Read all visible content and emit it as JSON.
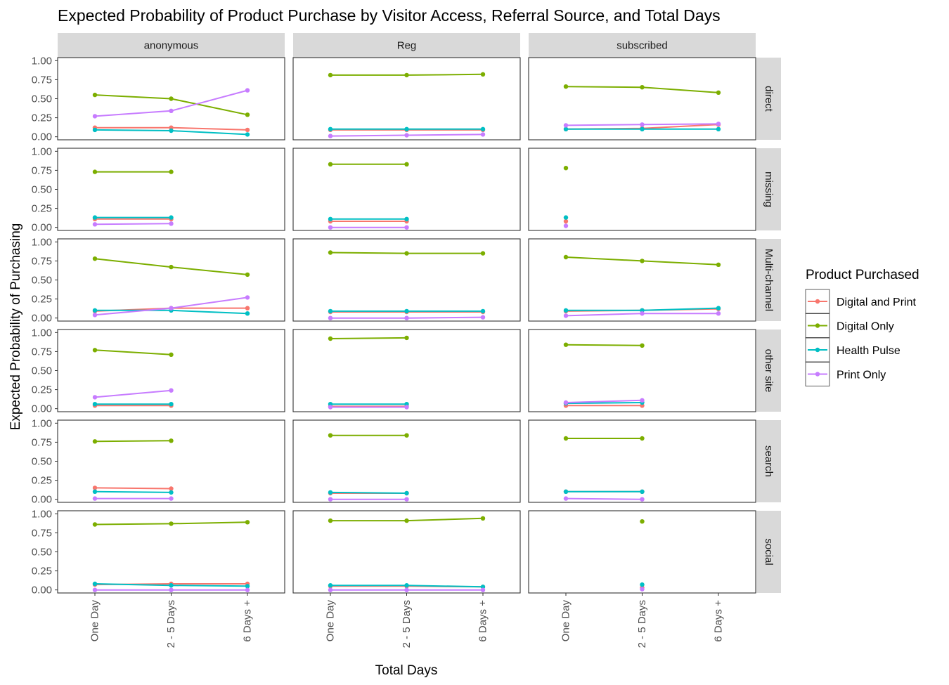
{
  "chart_data": {
    "type": "line",
    "title": "Expected Probability of Product Purchase by Visitor Access, Referral Source, and Total Days",
    "xlabel": "Total Days",
    "ylabel": "Expected Probability of Purchasing",
    "x_categories": [
      "One Day",
      "2 - 5 Days",
      "6 Days +"
    ],
    "y_ticks": [
      "0.00",
      "0.25",
      "0.50",
      "0.75",
      "1.00"
    ],
    "ylim": [
      -0.04,
      1.04
    ],
    "columns": [
      "anonymous",
      "Reg",
      "subscribed"
    ],
    "rows": [
      "direct",
      "missing",
      "Multi-channel",
      "other site",
      "search",
      "social"
    ],
    "legend": {
      "title": "Product Purchased",
      "placement": "right",
      "items": [
        {
          "name": "Digital and Print",
          "color": "#F8766D"
        },
        {
          "name": "Digital Only",
          "color": "#7CAE00"
        },
        {
          "name": "Health Pulse",
          "color": "#00BFC4"
        },
        {
          "name": "Print Only",
          "color": "#C77CFF"
        }
      ]
    },
    "panels": [
      {
        "column": "anonymous",
        "row": "direct",
        "series": [
          {
            "name": "Digital and Print",
            "values": [
              0.12,
              0.12,
              0.09
            ]
          },
          {
            "name": "Digital Only",
            "values": [
              0.55,
              0.5,
              0.29
            ]
          },
          {
            "name": "Health Pulse",
            "values": [
              0.09,
              0.08,
              0.03
            ]
          },
          {
            "name": "Print Only",
            "values": [
              0.27,
              0.34,
              0.61
            ]
          }
        ]
      },
      {
        "column": "Reg",
        "row": "direct",
        "series": [
          {
            "name": "Digital and Print",
            "values": [
              0.09,
              0.09,
              0.09
            ]
          },
          {
            "name": "Digital Only",
            "values": [
              0.81,
              0.81,
              0.82
            ]
          },
          {
            "name": "Health Pulse",
            "values": [
              0.1,
              0.1,
              0.1
            ]
          },
          {
            "name": "Print Only",
            "values": [
              0.01,
              0.02,
              0.03
            ]
          }
        ]
      },
      {
        "column": "subscribed",
        "row": "direct",
        "series": [
          {
            "name": "Digital and Print",
            "values": [
              0.1,
              0.11,
              0.16
            ]
          },
          {
            "name": "Digital Only",
            "values": [
              0.66,
              0.65,
              0.58
            ]
          },
          {
            "name": "Health Pulse",
            "values": [
              0.1,
              0.1,
              0.1
            ]
          },
          {
            "name": "Print Only",
            "values": [
              0.15,
              0.16,
              0.17
            ]
          }
        ]
      },
      {
        "column": "anonymous",
        "row": "missing",
        "series": [
          {
            "name": "Digital and Print",
            "values": [
              0.11,
              0.11,
              null
            ]
          },
          {
            "name": "Digital Only",
            "values": [
              0.73,
              0.73,
              null
            ]
          },
          {
            "name": "Health Pulse",
            "values": [
              0.13,
              0.13,
              null
            ]
          },
          {
            "name": "Print Only",
            "values": [
              0.04,
              0.05,
              null
            ]
          }
        ]
      },
      {
        "column": "Reg",
        "row": "missing",
        "series": [
          {
            "name": "Digital and Print",
            "values": [
              0.08,
              0.08,
              null
            ]
          },
          {
            "name": "Digital Only",
            "values": [
              0.83,
              0.83,
              null
            ]
          },
          {
            "name": "Health Pulse",
            "values": [
              0.11,
              0.11,
              null
            ]
          },
          {
            "name": "Print Only",
            "values": [
              0.0,
              0.0,
              null
            ]
          }
        ]
      },
      {
        "column": "subscribed",
        "row": "missing",
        "series": [
          {
            "name": "Digital and Print",
            "values": [
              0.08,
              null,
              null
            ]
          },
          {
            "name": "Digital Only",
            "values": [
              0.78,
              null,
              null
            ]
          },
          {
            "name": "Health Pulse",
            "values": [
              0.13,
              null,
              null
            ]
          },
          {
            "name": "Print Only",
            "values": [
              0.02,
              null,
              null
            ]
          }
        ]
      },
      {
        "column": "anonymous",
        "row": "Multi-channel",
        "series": [
          {
            "name": "Digital and Print",
            "values": [
              0.09,
              0.13,
              0.13
            ]
          },
          {
            "name": "Digital Only",
            "values": [
              0.78,
              0.67,
              0.57
            ]
          },
          {
            "name": "Health Pulse",
            "values": [
              0.1,
              0.1,
              0.06
            ]
          },
          {
            "name": "Print Only",
            "values": [
              0.04,
              0.13,
              0.27
            ]
          }
        ]
      },
      {
        "column": "Reg",
        "row": "Multi-channel",
        "series": [
          {
            "name": "Digital and Print",
            "values": [
              0.08,
              0.08,
              0.08
            ]
          },
          {
            "name": "Digital Only",
            "values": [
              0.86,
              0.85,
              0.85
            ]
          },
          {
            "name": "Health Pulse",
            "values": [
              0.09,
              0.09,
              0.09
            ]
          },
          {
            "name": "Print Only",
            "values": [
              0.0,
              0.0,
              0.01
            ]
          }
        ]
      },
      {
        "column": "subscribed",
        "row": "Multi-channel",
        "series": [
          {
            "name": "Digital and Print",
            "values": [
              0.09,
              0.1,
              0.12
            ]
          },
          {
            "name": "Digital Only",
            "values": [
              0.8,
              0.75,
              0.7
            ]
          },
          {
            "name": "Health Pulse",
            "values": [
              0.1,
              0.1,
              0.13
            ]
          },
          {
            "name": "Print Only",
            "values": [
              0.03,
              0.06,
              0.06
            ]
          }
        ]
      },
      {
        "column": "anonymous",
        "row": "other site",
        "series": [
          {
            "name": "Digital and Print",
            "values": [
              0.04,
              0.04,
              null
            ]
          },
          {
            "name": "Digital Only",
            "values": [
              0.77,
              0.71,
              null
            ]
          },
          {
            "name": "Health Pulse",
            "values": [
              0.06,
              0.06,
              null
            ]
          },
          {
            "name": "Print Only",
            "values": [
              0.15,
              0.24,
              null
            ]
          }
        ]
      },
      {
        "column": "Reg",
        "row": "other site",
        "series": [
          {
            "name": "Digital and Print",
            "values": [
              0.03,
              0.03,
              null
            ]
          },
          {
            "name": "Digital Only",
            "values": [
              0.92,
              0.93,
              null
            ]
          },
          {
            "name": "Health Pulse",
            "values": [
              0.06,
              0.06,
              null
            ]
          },
          {
            "name": "Print Only",
            "values": [
              0.02,
              0.02,
              null
            ]
          }
        ]
      },
      {
        "column": "subscribed",
        "row": "other site",
        "series": [
          {
            "name": "Digital and Print",
            "values": [
              0.04,
              0.04,
              null
            ]
          },
          {
            "name": "Digital Only",
            "values": [
              0.84,
              0.83,
              null
            ]
          },
          {
            "name": "Health Pulse",
            "values": [
              0.07,
              0.08,
              null
            ]
          },
          {
            "name": "Print Only",
            "values": [
              0.08,
              0.11,
              null
            ]
          }
        ]
      },
      {
        "column": "anonymous",
        "row": "search",
        "series": [
          {
            "name": "Digital and Print",
            "values": [
              0.15,
              0.14,
              null
            ]
          },
          {
            "name": "Digital Only",
            "values": [
              0.76,
              0.77,
              null
            ]
          },
          {
            "name": "Health Pulse",
            "values": [
              0.1,
              0.09,
              null
            ]
          },
          {
            "name": "Print Only",
            "values": [
              0.01,
              0.01,
              null
            ]
          }
        ]
      },
      {
        "column": "Reg",
        "row": "search",
        "series": [
          {
            "name": "Digital and Print",
            "values": [
              0.08,
              0.08,
              null
            ]
          },
          {
            "name": "Digital Only",
            "values": [
              0.84,
              0.84,
              null
            ]
          },
          {
            "name": "Health Pulse",
            "values": [
              0.09,
              0.08,
              null
            ]
          },
          {
            "name": "Print Only",
            "values": [
              0.0,
              0.0,
              null
            ]
          }
        ]
      },
      {
        "column": "subscribed",
        "row": "search",
        "series": [
          {
            "name": "Digital and Print",
            "values": [
              0.1,
              0.1,
              null
            ]
          },
          {
            "name": "Digital Only",
            "values": [
              0.8,
              0.8,
              null
            ]
          },
          {
            "name": "Health Pulse",
            "values": [
              0.1,
              0.1,
              null
            ]
          },
          {
            "name": "Print Only",
            "values": [
              0.01,
              0.0,
              null
            ]
          }
        ]
      },
      {
        "column": "anonymous",
        "row": "social",
        "series": [
          {
            "name": "Digital and Print",
            "values": [
              0.07,
              0.08,
              0.08
            ]
          },
          {
            "name": "Digital Only",
            "values": [
              0.86,
              0.87,
              0.89
            ]
          },
          {
            "name": "Health Pulse",
            "values": [
              0.08,
              0.06,
              0.05
            ]
          },
          {
            "name": "Print Only",
            "values": [
              0.0,
              0.0,
              0.0
            ]
          }
        ]
      },
      {
        "column": "Reg",
        "row": "social",
        "series": [
          {
            "name": "Digital and Print",
            "values": [
              0.05,
              0.05,
              0.04
            ]
          },
          {
            "name": "Digital Only",
            "values": [
              0.91,
              0.91,
              0.94
            ]
          },
          {
            "name": "Health Pulse",
            "values": [
              0.06,
              0.06,
              0.04
            ]
          },
          {
            "name": "Print Only",
            "values": [
              0.0,
              0.0,
              0.0
            ]
          }
        ]
      },
      {
        "column": "subscribed",
        "row": "social",
        "series": [
          {
            "name": "Digital and Print",
            "values": [
              null,
              0.03,
              null
            ]
          },
          {
            "name": "Digital Only",
            "values": [
              null,
              0.9,
              null
            ]
          },
          {
            "name": "Health Pulse",
            "values": [
              null,
              0.07,
              null
            ]
          },
          {
            "name": "Print Only",
            "values": [
              null,
              0.01,
              null
            ]
          }
        ]
      }
    ]
  }
}
